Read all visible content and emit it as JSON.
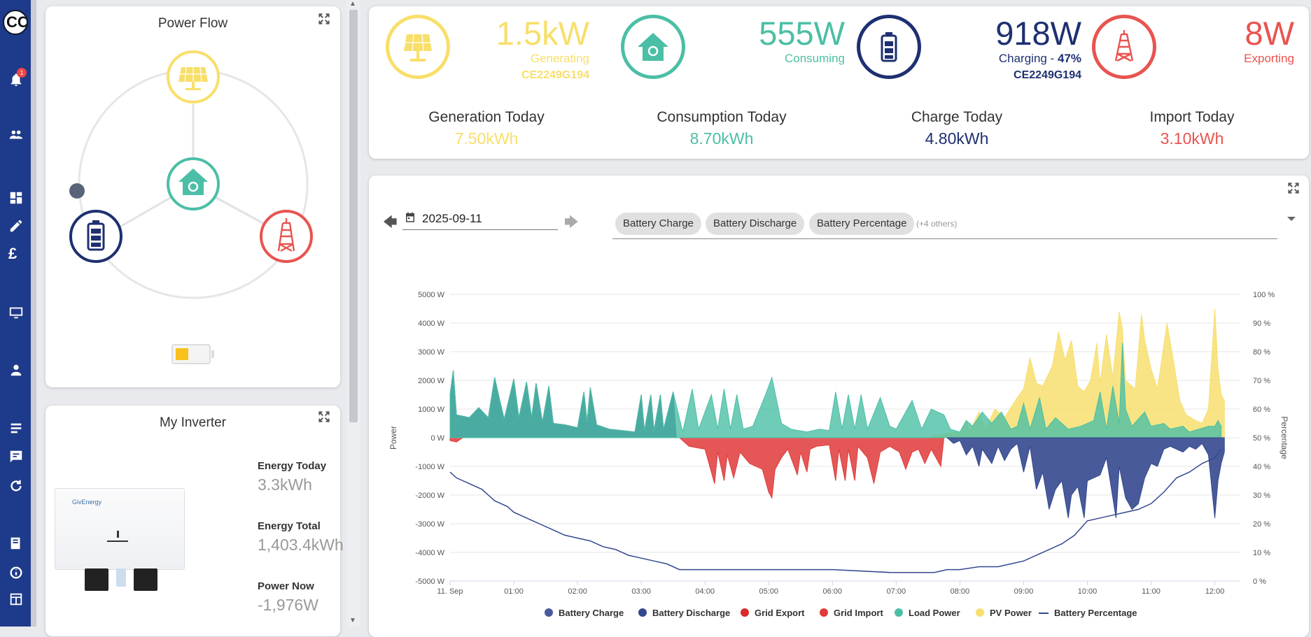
{
  "app": {
    "logo_text": "CC",
    "notification_count": "1"
  },
  "power_flow": {
    "title": "Power Flow"
  },
  "summary": {
    "solar": {
      "value": "1.5kW",
      "label": "Generating",
      "serial": "CE2249G194"
    },
    "home": {
      "value": "555W",
      "label": "Consuming"
    },
    "battery": {
      "value": "918W",
      "label_prefix": "Charging - ",
      "label_pct": "47%",
      "serial": "CE2249G194"
    },
    "grid": {
      "value": "8W",
      "label": "Exporting"
    },
    "today": [
      {
        "label": "Generation Today",
        "value": "7.50kWh"
      },
      {
        "label": "Consumption Today",
        "value": "8.70kWh"
      },
      {
        "label": "Charge Today",
        "value": "4.80kWh"
      },
      {
        "label": "Import Today",
        "value": "3.10kWh"
      }
    ],
    "colors": {
      "solar": "#f8df6a",
      "home": "#4bbfa5",
      "battery": "#1e3070",
      "grid": "#e85450"
    }
  },
  "inverter": {
    "title": "My Inverter",
    "brand_text": "GivEnergy",
    "stats": [
      {
        "label": "Energy Today",
        "value": "3.3kWh"
      },
      {
        "label": "Energy Total",
        "value": "1,403.4kWh"
      },
      {
        "label": "Power Now",
        "value": "-1,976W"
      }
    ]
  },
  "chart_controls": {
    "date": "2025-09-11",
    "chips": [
      "Battery Charge",
      "Battery Discharge",
      "Battery Percentage"
    ],
    "others": "(+4 others)"
  },
  "chart_data": {
    "type": "area",
    "y_label_left": "Power",
    "y_label_right": "Percentage",
    "y_ticks_left": [
      "5000 W",
      "4000 W",
      "3000 W",
      "2000 W",
      "1000 W",
      "0 W",
      "-1000 W",
      "-2000 W",
      "-3000 W",
      "-4000 W",
      "-5000 W"
    ],
    "y_ticks_right": [
      "100 %",
      "90 %",
      "80 %",
      "70 %",
      "60 %",
      "50 %",
      "40 %",
      "30 %",
      "20 %",
      "10 %",
      "0 %"
    ],
    "ylim_left": [
      -5000,
      5000
    ],
    "ylim_right": [
      0,
      100
    ],
    "x_ticks": [
      "11. Sep",
      "01:00",
      "02:00",
      "03:00",
      "04:00",
      "05:00",
      "06:00",
      "07:00",
      "08:00",
      "09:00",
      "10:00",
      "11:00",
      "12:00"
    ],
    "x_range_hours": [
      0,
      12.4
    ],
    "grid": true,
    "legend_position": "bottom",
    "series": [
      {
        "name": "Battery Charge",
        "color": "#4a5a9a",
        "kind": "area"
      },
      {
        "name": "Battery Discharge",
        "color": "#34488f",
        "kind": "area",
        "points": [
          [
            0,
            1500
          ],
          [
            0.05,
            2350
          ],
          [
            0.1,
            800
          ],
          [
            0.3,
            700
          ],
          [
            0.45,
            1050
          ],
          [
            0.6,
            700
          ],
          [
            0.7,
            2100
          ],
          [
            0.78,
            1300
          ],
          [
            0.85,
            650
          ],
          [
            1.0,
            2050
          ],
          [
            1.08,
            700
          ],
          [
            1.2,
            1950
          ],
          [
            1.28,
            700
          ],
          [
            1.35,
            1900
          ],
          [
            1.45,
            550
          ],
          [
            1.55,
            1800
          ],
          [
            1.62,
            500
          ],
          [
            1.8,
            450
          ],
          [
            2.0,
            350
          ],
          [
            2.1,
            1600
          ],
          [
            2.15,
            550
          ],
          [
            2.2,
            1750
          ],
          [
            2.3,
            450
          ],
          [
            2.5,
            300
          ],
          [
            2.9,
            200
          ],
          [
            3.0,
            1500
          ],
          [
            3.05,
            250
          ],
          [
            3.15,
            1500
          ],
          [
            3.2,
            250
          ],
          [
            3.3,
            1500
          ],
          [
            3.35,
            300
          ],
          [
            3.5,
            1600
          ],
          [
            3.55,
            0
          ]
        ]
      },
      {
        "name": "Grid Export",
        "color": "#d92b2b",
        "kind": "area"
      },
      {
        "name": "Grid Import",
        "color": "#e03a3a",
        "kind": "area",
        "points": [
          [
            0,
            -100
          ],
          [
            0.1,
            -150
          ],
          [
            0.2,
            0
          ],
          [
            3.6,
            0
          ],
          [
            3.75,
            -300
          ],
          [
            4.0,
            -400
          ],
          [
            4.15,
            -1600
          ],
          [
            4.2,
            -500
          ],
          [
            4.3,
            -1500
          ],
          [
            4.35,
            -600
          ],
          [
            4.45,
            -1400
          ],
          [
            4.55,
            -500
          ],
          [
            4.7,
            -900
          ],
          [
            4.9,
            -1100
          ],
          [
            5.0,
            -1900
          ],
          [
            5.05,
            -2100
          ],
          [
            5.1,
            -1100
          ],
          [
            5.2,
            -700
          ],
          [
            5.3,
            -400
          ],
          [
            5.45,
            -1300
          ],
          [
            5.5,
            -500
          ],
          [
            5.6,
            -1200
          ],
          [
            5.65,
            -400
          ],
          [
            5.75,
            -300
          ],
          [
            5.95,
            -250
          ],
          [
            6.05,
            -1500
          ],
          [
            6.1,
            -400
          ],
          [
            6.2,
            -1500
          ],
          [
            6.25,
            -400
          ],
          [
            6.35,
            -1500
          ],
          [
            6.4,
            -300
          ],
          [
            6.55,
            -700
          ],
          [
            6.65,
            -1600
          ],
          [
            6.75,
            -500
          ],
          [
            6.9,
            -300
          ],
          [
            7.05,
            -500
          ],
          [
            7.15,
            -1100
          ],
          [
            7.25,
            -500
          ],
          [
            7.35,
            -400
          ],
          [
            7.45,
            -900
          ],
          [
            7.55,
            -400
          ],
          [
            7.7,
            -1000
          ],
          [
            7.75,
            0
          ]
        ]
      },
      {
        "name": "Load Power",
        "color": "#4bbfa5",
        "kind": "area",
        "points": [
          [
            0,
            1500
          ],
          [
            0.05,
            2350
          ],
          [
            0.1,
            800
          ],
          [
            0.3,
            700
          ],
          [
            0.45,
            1050
          ],
          [
            0.6,
            700
          ],
          [
            0.7,
            2100
          ],
          [
            0.78,
            1300
          ],
          [
            0.85,
            650
          ],
          [
            1.0,
            2050
          ],
          [
            1.08,
            700
          ],
          [
            1.2,
            1950
          ],
          [
            1.28,
            700
          ],
          [
            1.35,
            1900
          ],
          [
            1.45,
            550
          ],
          [
            1.55,
            1800
          ],
          [
            1.62,
            500
          ],
          [
            1.8,
            450
          ],
          [
            2.0,
            350
          ],
          [
            2.1,
            1600
          ],
          [
            2.15,
            550
          ],
          [
            2.2,
            1750
          ],
          [
            2.3,
            450
          ],
          [
            2.5,
            300
          ],
          [
            2.9,
            200
          ],
          [
            3.0,
            1500
          ],
          [
            3.05,
            250
          ],
          [
            3.15,
            1500
          ],
          [
            3.2,
            250
          ],
          [
            3.3,
            1500
          ],
          [
            3.35,
            300
          ],
          [
            3.5,
            1600
          ],
          [
            3.65,
            200
          ],
          [
            3.8,
            1700
          ],
          [
            3.9,
            300
          ],
          [
            4.1,
            1500
          ],
          [
            4.2,
            300
          ],
          [
            4.3,
            1700
          ],
          [
            4.4,
            300
          ],
          [
            4.5,
            1500
          ],
          [
            4.6,
            300
          ],
          [
            4.75,
            400
          ],
          [
            4.95,
            1500
          ],
          [
            5.05,
            2100
          ],
          [
            5.2,
            500
          ],
          [
            5.35,
            300
          ],
          [
            5.6,
            200
          ],
          [
            5.8,
            300
          ],
          [
            5.95,
            250
          ],
          [
            6.05,
            1600
          ],
          [
            6.15,
            300
          ],
          [
            6.25,
            1500
          ],
          [
            6.35,
            300
          ],
          [
            6.45,
            1500
          ],
          [
            6.55,
            300
          ],
          [
            6.75,
            1400
          ],
          [
            6.9,
            400
          ],
          [
            7.0,
            300
          ],
          [
            7.25,
            1300
          ],
          [
            7.4,
            300
          ],
          [
            7.55,
            1000
          ],
          [
            7.75,
            800
          ],
          [
            7.85,
            300
          ],
          [
            8.0,
            200
          ],
          [
            8.1,
            600
          ],
          [
            8.2,
            400
          ],
          [
            8.35,
            900
          ],
          [
            8.5,
            500
          ],
          [
            8.65,
            900
          ],
          [
            8.8,
            300
          ],
          [
            8.9,
            400
          ],
          [
            9.0,
            1200
          ],
          [
            9.1,
            300
          ],
          [
            9.25,
            1400
          ],
          [
            9.35,
            300
          ],
          [
            9.5,
            700
          ],
          [
            9.7,
            300
          ],
          [
            9.9,
            400
          ],
          [
            10.1,
            600
          ],
          [
            10.2,
            1600
          ],
          [
            10.3,
            300
          ],
          [
            10.4,
            1800
          ],
          [
            10.5,
            500
          ],
          [
            10.55,
            3300
          ],
          [
            10.6,
            1000
          ],
          [
            10.7,
            400
          ],
          [
            10.9,
            900
          ],
          [
            11.0,
            400
          ],
          [
            11.2,
            500
          ],
          [
            11.3,
            300
          ],
          [
            11.5,
            400
          ],
          [
            11.6,
            200
          ],
          [
            11.75,
            300
          ],
          [
            11.9,
            400
          ],
          [
            12.0,
            400
          ],
          [
            12.05,
            600
          ],
          [
            12.1,
            400
          ]
        ]
      },
      {
        "name": "PV Power",
        "color": "#f7df6e",
        "kind": "area",
        "points": [
          [
            0,
            0
          ],
          [
            7.5,
            0
          ],
          [
            7.8,
            150
          ],
          [
            8.0,
            200
          ],
          [
            8.1,
            600
          ],
          [
            8.15,
            200
          ],
          [
            8.3,
            900
          ],
          [
            8.4,
            300
          ],
          [
            8.55,
            1000
          ],
          [
            8.7,
            700
          ],
          [
            8.9,
            1400
          ],
          [
            9.0,
            1700
          ],
          [
            9.1,
            2800
          ],
          [
            9.2,
            1900
          ],
          [
            9.3,
            1800
          ],
          [
            9.45,
            2500
          ],
          [
            9.55,
            3700
          ],
          [
            9.65,
            2700
          ],
          [
            9.75,
            3400
          ],
          [
            9.85,
            1800
          ],
          [
            9.95,
            1600
          ],
          [
            10.05,
            2000
          ],
          [
            10.15,
            3300
          ],
          [
            10.2,
            1900
          ],
          [
            10.3,
            3600
          ],
          [
            10.4,
            2100
          ],
          [
            10.5,
            4400
          ],
          [
            10.55,
            3800
          ],
          [
            10.6,
            2000
          ],
          [
            10.75,
            1700
          ],
          [
            10.85,
            4300
          ],
          [
            10.9,
            3400
          ],
          [
            11.0,
            2400
          ],
          [
            11.1,
            1700
          ],
          [
            11.25,
            4000
          ],
          [
            11.35,
            2700
          ],
          [
            11.45,
            1300
          ],
          [
            11.55,
            800
          ],
          [
            11.7,
            600
          ],
          [
            11.8,
            500
          ],
          [
            11.9,
            1000
          ],
          [
            12.0,
            4500
          ],
          [
            12.05,
            2400
          ],
          [
            12.1,
            1500
          ],
          [
            12.15,
            1300
          ]
        ]
      },
      {
        "name": "Battery Percentage",
        "color": "#34488f",
        "kind": "line",
        "points": [
          [
            0,
            38
          ],
          [
            0.1,
            36
          ],
          [
            0.2,
            35
          ],
          [
            0.3,
            34
          ],
          [
            0.4,
            33
          ],
          [
            0.5,
            32
          ],
          [
            0.6,
            30
          ],
          [
            0.7,
            28
          ],
          [
            0.8,
            27
          ],
          [
            0.9,
            26
          ],
          [
            1.0,
            24
          ],
          [
            1.2,
            22
          ],
          [
            1.4,
            20
          ],
          [
            1.6,
            18
          ],
          [
            1.8,
            16
          ],
          [
            2.0,
            15
          ],
          [
            2.2,
            14
          ],
          [
            2.4,
            12
          ],
          [
            2.6,
            11
          ],
          [
            2.8,
            9
          ],
          [
            3.0,
            8
          ],
          [
            3.2,
            7
          ],
          [
            3.4,
            6
          ],
          [
            3.6,
            4
          ],
          [
            4.0,
            4
          ],
          [
            5.0,
            4
          ],
          [
            6.0,
            4
          ],
          [
            6.9,
            3
          ],
          [
            7.2,
            3
          ],
          [
            7.6,
            3
          ],
          [
            7.8,
            4
          ],
          [
            8.0,
            4
          ],
          [
            8.3,
            5
          ],
          [
            8.6,
            5
          ],
          [
            8.8,
            6
          ],
          [
            9.0,
            7
          ],
          [
            9.2,
            9
          ],
          [
            9.4,
            11
          ],
          [
            9.6,
            13
          ],
          [
            9.8,
            16
          ],
          [
            10.0,
            21
          ],
          [
            10.2,
            22
          ],
          [
            10.4,
            23
          ],
          [
            10.6,
            24
          ],
          [
            10.8,
            25
          ],
          [
            11.0,
            27
          ],
          [
            11.2,
            31
          ],
          [
            11.4,
            36
          ],
          [
            11.6,
            38
          ],
          [
            11.8,
            41
          ],
          [
            12.0,
            43
          ],
          [
            12.1,
            46
          ]
        ]
      }
    ]
  }
}
